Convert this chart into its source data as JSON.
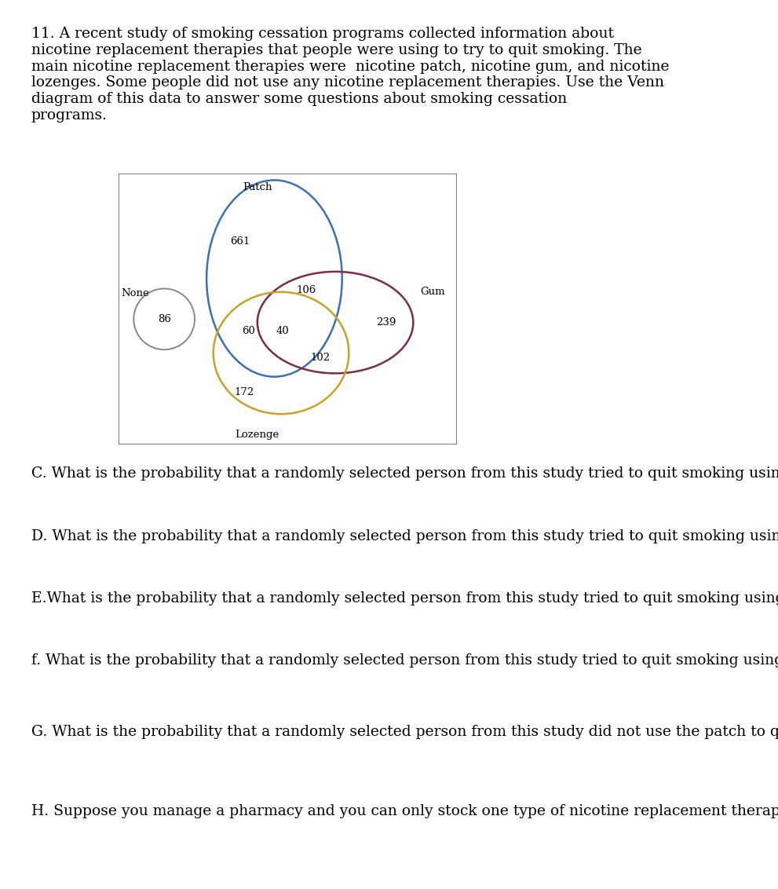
{
  "intro_text": "11. A recent study of smoking cessation programs collected information about\nnicotine replacement therapies that people were using to try to quit smoking. The\nmain nicotine replacement therapies were  nicotine patch, nicotine gum, and nicotine\nlozenges. Some people did not use any nicotine replacement therapies. Use the Venn\ndiagram of this data to answer some questions about smoking cessation\nprograms.",
  "questions": [
    "C. What is the probability that a randomly selected person from this study tried to quit smoking using neither the patch nor gum?",
    "D. What is the probability that a randomly selected person from this study tried to quit smoking using both the patch and gum?",
    "E.What is the probability that a randomly selected person from this study tried to quit smoking using a lozenge given that they also used gum?",
    "f. What is the probability that a randomly selected person from this study tried to quit smoking using a lozenge given that they did not use gum?",
    "G. What is the probability that a randomly selected person from this study did not use the patch to quit smoking given that they did not use a lozenge?",
    "H. Suppose you manage a pharmacy and you can only stock one type of nicotine replacement therapy. Which one would you choose and why?"
  ],
  "venn": {
    "patch_color": "#3a6fba",
    "gum_color": "#7B2D42",
    "lozenge_color": "#C9A227",
    "none_color": "#888888",
    "values": {
      "patch_only": 661,
      "patch_gum": 106,
      "gum_only": 239,
      "patch_lozenge": 60,
      "all_three": 40,
      "gum_lozenge": 102,
      "lozenge_only": 172,
      "none": 86
    },
    "labels": {
      "patch": "Patch",
      "gum": "Gum",
      "lozenge": "Lozenge",
      "none": "None"
    }
  },
  "background_color": "#ffffff",
  "text_color": "#000000",
  "font_size_intro": 13.5,
  "font_size_questions": 13.5,
  "font_size_venn_labels": 9.5,
  "font_size_venn_numbers": 9.5
}
